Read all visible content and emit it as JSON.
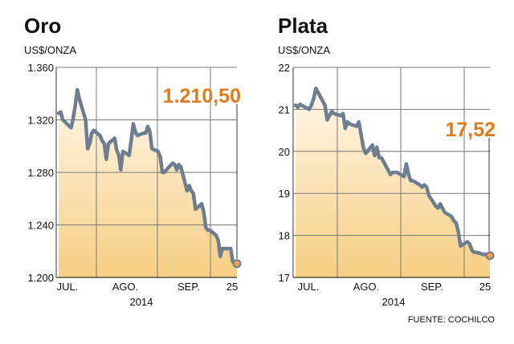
{
  "theme": {
    "line_color": "#6e7d8f",
    "accent": "#e07b1a",
    "marker_fill": "#f4a04b",
    "fill_top": "#fff7ea",
    "fill_bottom": "#f6cf82",
    "grid_color": "#777777"
  },
  "source": "FUENTE: COCHILCO",
  "chart_data": [
    {
      "type": "line",
      "title": "Oro",
      "ylabel": "US$/ONZA",
      "callout": "1.210,50",
      "ylim": [
        1200,
        1360
      ],
      "y_ticks": [
        {
          "value": 1200,
          "label": "1.200"
        },
        {
          "value": 1240,
          "label": "1.240"
        },
        {
          "value": 1280,
          "label": "1.280"
        },
        {
          "value": 1320,
          "label": "1.320"
        },
        {
          "value": 1360,
          "label": "1.360"
        }
      ],
      "x_labels": [
        "JUL.",
        "AGO.",
        "SEP.",
        "25"
      ],
      "x_year": "2014",
      "x": [
        "2014-07-01",
        "2014-07-02",
        "2014-07-03",
        "2014-07-07",
        "2014-07-08",
        "2014-07-09",
        "2014-07-10",
        "2014-07-11",
        "2014-07-14",
        "2014-07-15",
        "2014-07-16",
        "2014-07-17",
        "2014-07-18",
        "2014-07-21",
        "2014-07-22",
        "2014-07-23",
        "2014-07-24",
        "2014-07-25",
        "2014-07-28",
        "2014-07-29",
        "2014-07-30",
        "2014-07-31",
        "2014-08-01",
        "2014-08-04",
        "2014-08-05",
        "2014-08-06",
        "2014-08-07",
        "2014-08-08",
        "2014-08-11",
        "2014-08-12",
        "2014-08-13",
        "2014-08-14",
        "2014-08-15",
        "2014-08-18",
        "2014-08-19",
        "2014-08-20",
        "2014-08-21",
        "2014-08-22",
        "2014-08-25",
        "2014-08-26",
        "2014-08-27",
        "2014-08-28",
        "2014-08-29",
        "2014-09-01",
        "2014-09-02",
        "2014-09-03",
        "2014-09-04",
        "2014-09-05",
        "2014-09-08",
        "2014-09-09",
        "2014-09-10",
        "2014-09-11",
        "2014-09-12",
        "2014-09-15",
        "2014-09-16",
        "2014-09-17",
        "2014-09-18",
        "2014-09-19",
        "2014-09-22",
        "2014-09-23",
        "2014-09-24",
        "2014-09-25"
      ],
      "values": [
        1325,
        1326,
        1320,
        1314,
        1321,
        1331,
        1343,
        1336,
        1320,
        1298,
        1302,
        1310,
        1312,
        1308,
        1304,
        1302,
        1290,
        1302,
        1306,
        1297,
        1293,
        1282,
        1296,
        1293,
        1304,
        1317,
        1311,
        1308,
        1310,
        1310,
        1315,
        1311,
        1298,
        1296,
        1292,
        1280,
        1280,
        1282,
        1287,
        1286,
        1282,
        1286,
        1284,
        1266,
        1270,
        1266,
        1264,
        1252,
        1256,
        1250,
        1238,
        1236,
        1236,
        1232,
        1228,
        1216,
        1222,
        1222,
        1222,
        1212,
        1212,
        1210.5
      ]
    },
    {
      "type": "line",
      "title": "Plata",
      "ylabel": "US$/ONZA",
      "callout": "17,52",
      "ylim": [
        17,
        22
      ],
      "y_ticks": [
        {
          "value": 17,
          "label": "17"
        },
        {
          "value": 18,
          "label": "18"
        },
        {
          "value": 19,
          "label": "19"
        },
        {
          "value": 20,
          "label": "20"
        },
        {
          "value": 21,
          "label": "21"
        },
        {
          "value": 22,
          "label": "22"
        }
      ],
      "x_labels": [
        "JUL.",
        "AGO.",
        "SEP.",
        "25"
      ],
      "x_year": "2014",
      "x": [
        "2014-07-01",
        "2014-07-02",
        "2014-07-03",
        "2014-07-07",
        "2014-07-08",
        "2014-07-09",
        "2014-07-10",
        "2014-07-11",
        "2014-07-14",
        "2014-07-15",
        "2014-07-16",
        "2014-07-17",
        "2014-07-18",
        "2014-07-21",
        "2014-07-22",
        "2014-07-23",
        "2014-07-24",
        "2014-07-25",
        "2014-07-28",
        "2014-07-29",
        "2014-07-30",
        "2014-07-31",
        "2014-08-01",
        "2014-08-04",
        "2014-08-05",
        "2014-08-06",
        "2014-08-07",
        "2014-08-08",
        "2014-08-11",
        "2014-08-12",
        "2014-08-13",
        "2014-08-14",
        "2014-08-15",
        "2014-08-18",
        "2014-08-19",
        "2014-08-20",
        "2014-08-21",
        "2014-08-22",
        "2014-08-25",
        "2014-08-26",
        "2014-08-27",
        "2014-08-28",
        "2014-08-29",
        "2014-09-01",
        "2014-09-02",
        "2014-09-03",
        "2014-09-04",
        "2014-09-05",
        "2014-09-08",
        "2014-09-09",
        "2014-09-10",
        "2014-09-11",
        "2014-09-12",
        "2014-09-15",
        "2014-09-16",
        "2014-09-17",
        "2014-09-18",
        "2014-09-19",
        "2014-09-22",
        "2014-09-23",
        "2014-09-24",
        "2014-09-25"
      ],
      "values": [
        21.1,
        21.05,
        21.12,
        21.0,
        21.1,
        21.25,
        21.5,
        21.4,
        21.1,
        20.75,
        20.85,
        20.95,
        20.9,
        20.85,
        20.9,
        20.55,
        20.7,
        20.65,
        20.6,
        20.7,
        20.4,
        20.1,
        19.95,
        20.15,
        19.9,
        20.1,
        19.85,
        19.85,
        19.55,
        19.45,
        19.5,
        19.5,
        19.5,
        19.4,
        19.7,
        19.45,
        19.3,
        19.3,
        19.2,
        19.15,
        19.2,
        19.15,
        18.95,
        18.7,
        18.65,
        18.75,
        18.65,
        18.55,
        18.45,
        18.35,
        18.3,
        18.1,
        17.75,
        17.85,
        17.8,
        17.65,
        17.6,
        17.6,
        17.55,
        17.55,
        17.52,
        17.52
      ]
    }
  ]
}
